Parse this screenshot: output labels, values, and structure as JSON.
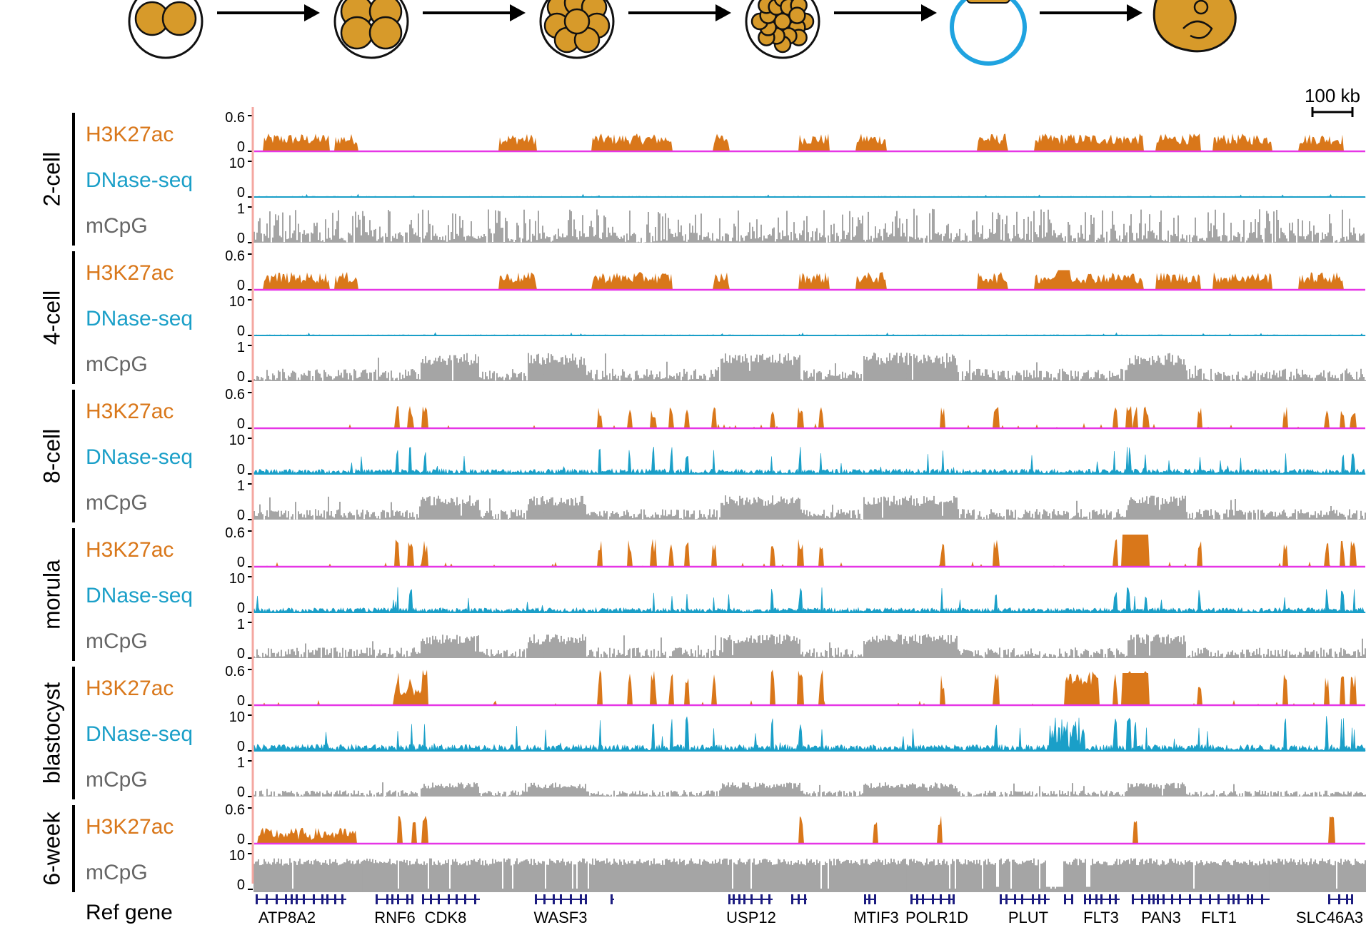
{
  "stages_timeline": [
    "2-cell",
    "4-cell",
    "8-cell",
    "morula",
    "blastocyst",
    "6-week"
  ],
  "colors": {
    "h3k27ac": "#d9771a",
    "dnase": "#1a9fc8",
    "mcpg": "#9b9b9b",
    "baseline": "#e636e6",
    "gene": "#1c1c80",
    "embryo_fill": "#d79a2a",
    "blastocyst_ring": "#1fa3e0",
    "left_axis": "#f4a7a0"
  },
  "scale_bar": {
    "label": "100 kb"
  },
  "groups": [
    {
      "stage": "2-cell",
      "tracks": [
        {
          "name": "H3K27ac",
          "type": "h3k27ac",
          "ymax": "0.6",
          "ymin": "0"
        },
        {
          "name": "DNase-seq",
          "type": "dnase",
          "ymax": "10",
          "ymin": "0"
        },
        {
          "name": "mCpG",
          "type": "mcpg",
          "ymax": "1",
          "ymin": "0"
        }
      ]
    },
    {
      "stage": "4-cell",
      "tracks": [
        {
          "name": "H3K27ac",
          "type": "h3k27ac",
          "ymax": "0.6",
          "ymin": "0"
        },
        {
          "name": "DNase-seq",
          "type": "dnase",
          "ymax": "10",
          "ymin": "0"
        },
        {
          "name": "mCpG",
          "type": "mcpg",
          "ymax": "1",
          "ymin": "0"
        }
      ]
    },
    {
      "stage": "8-cell",
      "tracks": [
        {
          "name": "H3K27ac",
          "type": "h3k27ac",
          "ymax": "0.6",
          "ymin": "0"
        },
        {
          "name": "DNase-seq",
          "type": "dnase",
          "ymax": "10",
          "ymin": "0"
        },
        {
          "name": "mCpG",
          "type": "mcpg",
          "ymax": "1",
          "ymin": "0"
        }
      ]
    },
    {
      "stage": "morula",
      "tracks": [
        {
          "name": "H3K27ac",
          "type": "h3k27ac",
          "ymax": "0.6",
          "ymin": "0"
        },
        {
          "name": "DNase-seq",
          "type": "dnase",
          "ymax": "10",
          "ymin": "0"
        },
        {
          "name": "mCpG",
          "type": "mcpg",
          "ymax": "1",
          "ymin": "0"
        }
      ]
    },
    {
      "stage": "blastocyst",
      "tracks": [
        {
          "name": "H3K27ac",
          "type": "h3k27ac",
          "ymax": "0.6",
          "ymin": "0"
        },
        {
          "name": "DNase-seq",
          "type": "dnase",
          "ymax": "10",
          "ymin": "0"
        },
        {
          "name": "mCpG",
          "type": "mcpg",
          "ymax": "1",
          "ymin": "0"
        }
      ]
    },
    {
      "stage": "6-week",
      "tracks": [
        {
          "name": "H3K27ac",
          "type": "h3k27ac",
          "ymax": "0.6",
          "ymin": "0"
        },
        {
          "name": "mCpG",
          "type": "mcpg",
          "ymax": "10",
          "ymin": "0"
        }
      ]
    }
  ],
  "ref_gene": {
    "label": "Ref gene",
    "genes": [
      "ATP8A2",
      "RNF6",
      "CDK8",
      "WASF3",
      "USP12",
      "MTIF3",
      "POLR1D",
      "PLUT",
      "FLT3",
      "PAN3",
      "FLT1",
      "SLC46A3"
    ]
  }
}
